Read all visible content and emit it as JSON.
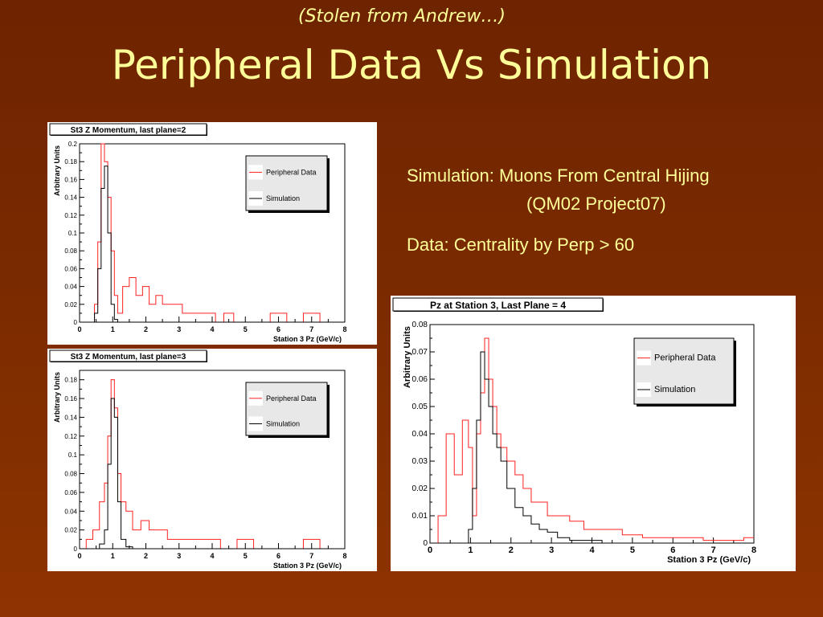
{
  "slide": {
    "subtitle": "(Stolen from Andrew…)",
    "title": "Peripheral Data Vs Simulation",
    "info_line1": "Simulation: Muons From Central Hijing",
    "info_line2": "(QM02 Project07)",
    "info_line3": "Data: Centrality by Perp > 60"
  },
  "colors": {
    "background": "#7a2a00",
    "text": "#ffff99",
    "data_series": "#ff2020",
    "sim_series": "#000000"
  },
  "chart_data": [
    {
      "type": "histogram",
      "title": "St3 Z Momentum, last plane=2",
      "xlabel": "Station 3 Pz (GeV/c)",
      "ylabel": "Arbitrary Units",
      "xlim": [
        0,
        8
      ],
      "ylim": [
        0,
        0.2
      ],
      "xticks": [
        "0",
        "1",
        "2",
        "3",
        "4",
        "5",
        "6",
        "7",
        "8"
      ],
      "yticks": [
        "0",
        "0.02",
        "0.04",
        "0.06",
        "0.08",
        "0.1",
        "0.12",
        "0.14",
        "0.16",
        "0.18",
        "0.2"
      ],
      "legend_position": "top-right",
      "x": [
        0.4,
        0.5,
        0.6,
        0.7,
        0.8,
        0.9,
        1.0,
        1.1,
        1.2,
        1.4,
        1.6,
        1.8,
        2.0,
        2.2,
        2.4,
        2.6,
        2.8,
        3.0,
        3.2,
        3.5,
        3.8,
        4.0,
        4.2,
        4.5,
        4.8,
        5.0,
        5.5,
        6.0,
        6.5,
        7.0,
        7.5,
        8.0
      ],
      "series": [
        {
          "name": "Peripheral Data",
          "values": [
            0.0,
            0.02,
            0.09,
            0.2,
            0.18,
            0.14,
            0.08,
            0.03,
            0.01,
            0.04,
            0.05,
            0.03,
            0.04,
            0.02,
            0.03,
            0.02,
            0.02,
            0.02,
            0.01,
            0.01,
            0.01,
            0.01,
            0.0,
            0.01,
            0.0,
            0.0,
            0.0,
            0.01,
            0.0,
            0.01,
            0.0,
            0.0
          ]
        },
        {
          "name": "Simulation",
          "values": [
            0.0,
            0.01,
            0.06,
            0.15,
            0.175,
            0.1,
            0.02,
            0.003,
            0.0,
            0.0,
            0.0,
            0.0,
            0.0,
            0.0,
            0.0,
            0.0,
            0.0,
            0.0,
            0.0,
            0.0,
            0.0,
            0.0,
            0.0,
            0.0,
            0.0,
            0.0,
            0.0,
            0.0,
            0.0,
            0.0,
            0.0,
            0.0
          ]
        }
      ]
    },
    {
      "type": "histogram",
      "title": "St3 Z Momentum, last plane=3",
      "xlabel": "Station 3 Pz (GeV/c)",
      "ylabel": "Arbitrary Units",
      "xlim": [
        0,
        8
      ],
      "ylim": [
        0,
        0.19
      ],
      "xticks": [
        "0",
        "1",
        "2",
        "3",
        "4",
        "5",
        "6",
        "7",
        "8"
      ],
      "yticks": [
        "0",
        "0.02",
        "0.04",
        "0.06",
        "0.08",
        "0.1",
        "0.12",
        "0.14",
        "0.16",
        "0.18"
      ],
      "legend_position": "top-right",
      "x": [
        0.3,
        0.5,
        0.7,
        0.8,
        0.9,
        1.0,
        1.1,
        1.2,
        1.3,
        1.5,
        1.7,
        2.0,
        2.2,
        2.5,
        2.8,
        3.0,
        3.3,
        3.6,
        4.0,
        4.5,
        5.0,
        5.5,
        6.0,
        6.5,
        7.0,
        7.5,
        8.0
      ],
      "series": [
        {
          "name": "Peripheral Data",
          "values": [
            0.01,
            0.02,
            0.05,
            0.07,
            0.12,
            0.18,
            0.15,
            0.08,
            0.05,
            0.04,
            0.02,
            0.03,
            0.02,
            0.02,
            0.01,
            0.01,
            0.01,
            0.01,
            0.01,
            0.0,
            0.01,
            0.0,
            0.0,
            0.0,
            0.01,
            0.0,
            0.0
          ]
        },
        {
          "name": "Simulation",
          "values": [
            0.0,
            0.0,
            0.005,
            0.02,
            0.09,
            0.16,
            0.14,
            0.05,
            0.01,
            0.002,
            0.0,
            0.0,
            0.0,
            0.0,
            0.0,
            0.0,
            0.0,
            0.0,
            0.0,
            0.0,
            0.0,
            0.0,
            0.0,
            0.0,
            0.0,
            0.0,
            0.0
          ]
        }
      ]
    },
    {
      "type": "histogram",
      "title": "Pz at Station 3, Last Plane = 4",
      "xlabel": "Station 3 Pz (GeV/c)",
      "ylabel": "Arbitrary Units",
      "xlim": [
        0,
        8
      ],
      "ylim": [
        0,
        0.08
      ],
      "xticks": [
        "0",
        "1",
        "2",
        "3",
        "4",
        "5",
        "6",
        "7",
        "8"
      ],
      "yticks": [
        "0",
        "0.01",
        "0.02",
        "0.03",
        "0.04",
        "0.05",
        "0.06",
        "0.07",
        "0.08"
      ],
      "legend_position": "top-right",
      "x": [
        0.3,
        0.5,
        0.7,
        0.9,
        1.0,
        1.1,
        1.2,
        1.3,
        1.4,
        1.5,
        1.6,
        1.7,
        1.8,
        2.0,
        2.2,
        2.4,
        2.6,
        2.8,
        3.0,
        3.3,
        3.6,
        4.0,
        4.5,
        5.0,
        5.5,
        6.0,
        6.5,
        7.0,
        7.5,
        8.0
      ],
      "series": [
        {
          "name": "Peripheral Data",
          "values": [
            0.01,
            0.04,
            0.025,
            0.045,
            0.035,
            0.01,
            0.04,
            0.055,
            0.075,
            0.06,
            0.05,
            0.04,
            0.035,
            0.03,
            0.025,
            0.02,
            0.015,
            0.015,
            0.01,
            0.01,
            0.008,
            0.005,
            0.005,
            0.003,
            0.002,
            0.002,
            0.002,
            0.001,
            0.001,
            0.002
          ]
        },
        {
          "name": "Simulation",
          "values": [
            0.0,
            0.0,
            0.0,
            0.0,
            0.005,
            0.02,
            0.045,
            0.07,
            0.06,
            0.05,
            0.04,
            0.035,
            0.03,
            0.02,
            0.013,
            0.01,
            0.007,
            0.005,
            0.004,
            0.002,
            0.001,
            0.001,
            0.0,
            0.0,
            0.0,
            0.0,
            0.0,
            0.0,
            0.0,
            0.0
          ]
        }
      ]
    }
  ]
}
